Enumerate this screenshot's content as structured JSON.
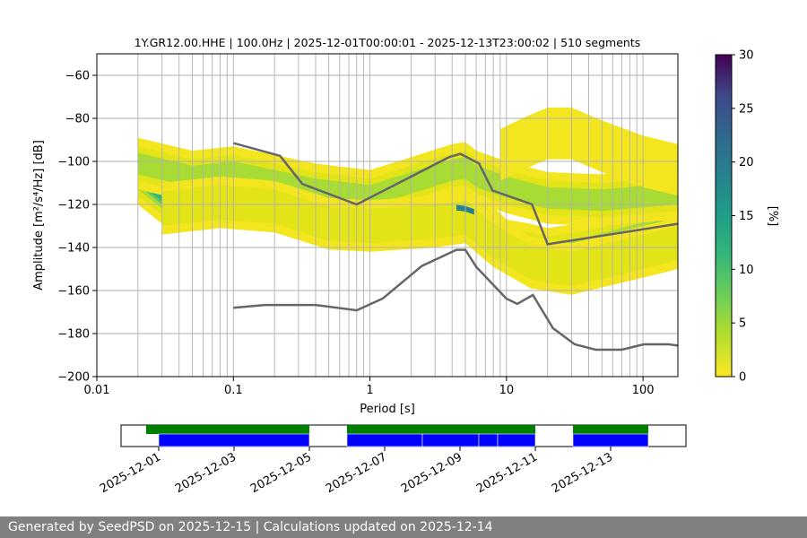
{
  "chart_data": {
    "type": "heatmap",
    "title": "1Y.GR12.00.HHE | 100.0Hz | 2025-12-01T00:00:01 - 2025-12-13T23:00:02 | 510 segments",
    "xlabel": "Period [s]",
    "ylabel": "Amplitude [m²/s⁴/Hz] [dB]",
    "xscale": "log",
    "xlim": [
      0.01,
      180
    ],
    "ylim": [
      -200,
      -50
    ],
    "x_ticks": [
      0.01,
      0.1,
      1,
      10,
      100
    ],
    "x_tick_labels": [
      "0.01",
      "0.1",
      "1",
      "10",
      "100"
    ],
    "y_ticks": [
      -200,
      -180,
      -160,
      -140,
      -120,
      -100,
      -80,
      -60
    ],
    "y_tick_labels": [
      "−200",
      "−180",
      "−160",
      "−140",
      "−120",
      "−100",
      "−80",
      "−60"
    ],
    "colorbar": {
      "label": "[%]",
      "range": [
        0,
        30
      ],
      "ticks": [
        0,
        5,
        10,
        15,
        20,
        25,
        30
      ],
      "tick_labels": [
        "0",
        "5",
        "10",
        "15",
        "20",
        "25",
        "30"
      ],
      "colormap": "viridis_r"
    },
    "density_ridges": [
      {
        "name": "main-ridge",
        "points": [
          [
            0.02,
            -108
          ],
          [
            0.03,
            -117
          ],
          [
            0.05,
            -114
          ],
          [
            0.08,
            -112
          ],
          [
            0.15,
            -115
          ],
          [
            0.3,
            -120
          ],
          [
            0.5,
            -126
          ],
          [
            0.8,
            -123
          ],
          [
            1.5,
            -122
          ],
          [
            3,
            -123
          ],
          [
            5,
            -122
          ],
          [
            6,
            -124
          ],
          [
            8,
            -133
          ],
          [
            10,
            -139
          ],
          [
            15,
            -141
          ],
          [
            20,
            -143
          ],
          [
            40,
            -140
          ],
          [
            80,
            -135
          ],
          [
            180,
            -128
          ]
        ],
        "peak_percent": 20
      },
      {
        "name": "upper-ridge",
        "points": [
          [
            0.02,
            -101
          ],
          [
            0.05,
            -107
          ],
          [
            0.1,
            -105
          ],
          [
            0.2,
            -109
          ],
          [
            0.4,
            -113
          ],
          [
            1,
            -116
          ],
          [
            2,
            -110
          ],
          [
            4,
            -104
          ],
          [
            5,
            -103
          ],
          [
            6,
            -107
          ],
          [
            10,
            -112
          ],
          [
            20,
            -117
          ],
          [
            50,
            -118
          ],
          [
            180,
            -115
          ]
        ],
        "peak_percent": 6
      },
      {
        "name": "lower-ridge",
        "points": [
          [
            0.03,
            -122
          ],
          [
            0.08,
            -119
          ],
          [
            0.2,
            -121
          ],
          [
            0.5,
            -129
          ],
          [
            1,
            -130
          ],
          [
            3,
            -128
          ],
          [
            5,
            -126
          ],
          [
            8,
            -137
          ],
          [
            15,
            -147
          ],
          [
            30,
            -150
          ],
          [
            100,
            -142
          ],
          [
            180,
            -138
          ]
        ],
        "peak_percent": 5
      },
      {
        "name": "upper-arc",
        "points": [
          [
            9,
            -97
          ],
          [
            13,
            -92
          ],
          [
            20,
            -87
          ],
          [
            30,
            -87
          ],
          [
            50,
            -93
          ],
          [
            100,
            -100
          ],
          [
            180,
            -104
          ]
        ],
        "peak_percent": 1
      }
    ],
    "reference_curves": [
      {
        "name": "NHNM",
        "points": [
          [
            0.1,
            -91.5
          ],
          [
            0.22,
            -97.4
          ],
          [
            0.32,
            -110.5
          ],
          [
            0.8,
            -120
          ],
          [
            3.8,
            -98
          ],
          [
            4.6,
            -96.5
          ],
          [
            6.3,
            -101
          ],
          [
            7.9,
            -113.5
          ],
          [
            15.4,
            -120
          ],
          [
            20,
            -138.5
          ],
          [
            180,
            -129
          ]
        ]
      },
      {
        "name": "NLNM",
        "points": [
          [
            0.1,
            -168
          ],
          [
            0.17,
            -166.7
          ],
          [
            0.4,
            -166.7
          ],
          [
            0.8,
            -169.2
          ],
          [
            1.24,
            -163.7
          ],
          [
            2.4,
            -148.6
          ],
          [
            4.3,
            -141.1
          ],
          [
            5,
            -141.1
          ],
          [
            6,
            -149
          ],
          [
            10,
            -163.8
          ],
          [
            12,
            -166.2
          ],
          [
            15.6,
            -162.1
          ],
          [
            21.9,
            -177.5
          ],
          [
            31.6,
            -185
          ],
          [
            45,
            -187.5
          ],
          [
            70,
            -187.5
          ],
          [
            101,
            -185
          ],
          [
            154,
            -185
          ],
          [
            180,
            -185.6
          ]
        ]
      }
    ],
    "availability": {
      "date_ticks": [
        "2025-12-01",
        "2025-12-03",
        "2025-12-05",
        "2025-12-07",
        "2025-12-09",
        "2025-12-11",
        "2025-12-13"
      ],
      "range_start": "2025-11-30",
      "range_end": "2025-12-15",
      "data_spans": [
        [
          "2025-11-30T16:00",
          "2025-12-05T00:00"
        ],
        [
          "2025-12-06T00:00",
          "2025-12-11T00:00"
        ],
        [
          "2025-12-12T00:00",
          "2025-12-14T00:00"
        ]
      ],
      "segment_spans": [
        [
          "2025-12-01T00:00",
          "2025-12-05T00:00"
        ],
        [
          "2025-12-06T00:00",
          "2025-12-08T00:00"
        ],
        [
          "2025-12-08T00:00",
          "2025-12-09T12:00"
        ],
        [
          "2025-12-09T12:00",
          "2025-12-10T00:00"
        ],
        [
          "2025-12-10T00:00",
          "2025-12-11T00:00"
        ],
        [
          "2025-12-12T00:00",
          "2025-12-14T00:00"
        ]
      ]
    },
    "colors": {
      "data_bar": "#008000",
      "segment_bar": "#0000ff",
      "model_curve": "#666666",
      "grid": "#b0b0b0"
    }
  },
  "footer": {
    "text": "Generated by SeedPSD on 2025-12-15 | Calculations updated on 2025-12-14"
  }
}
